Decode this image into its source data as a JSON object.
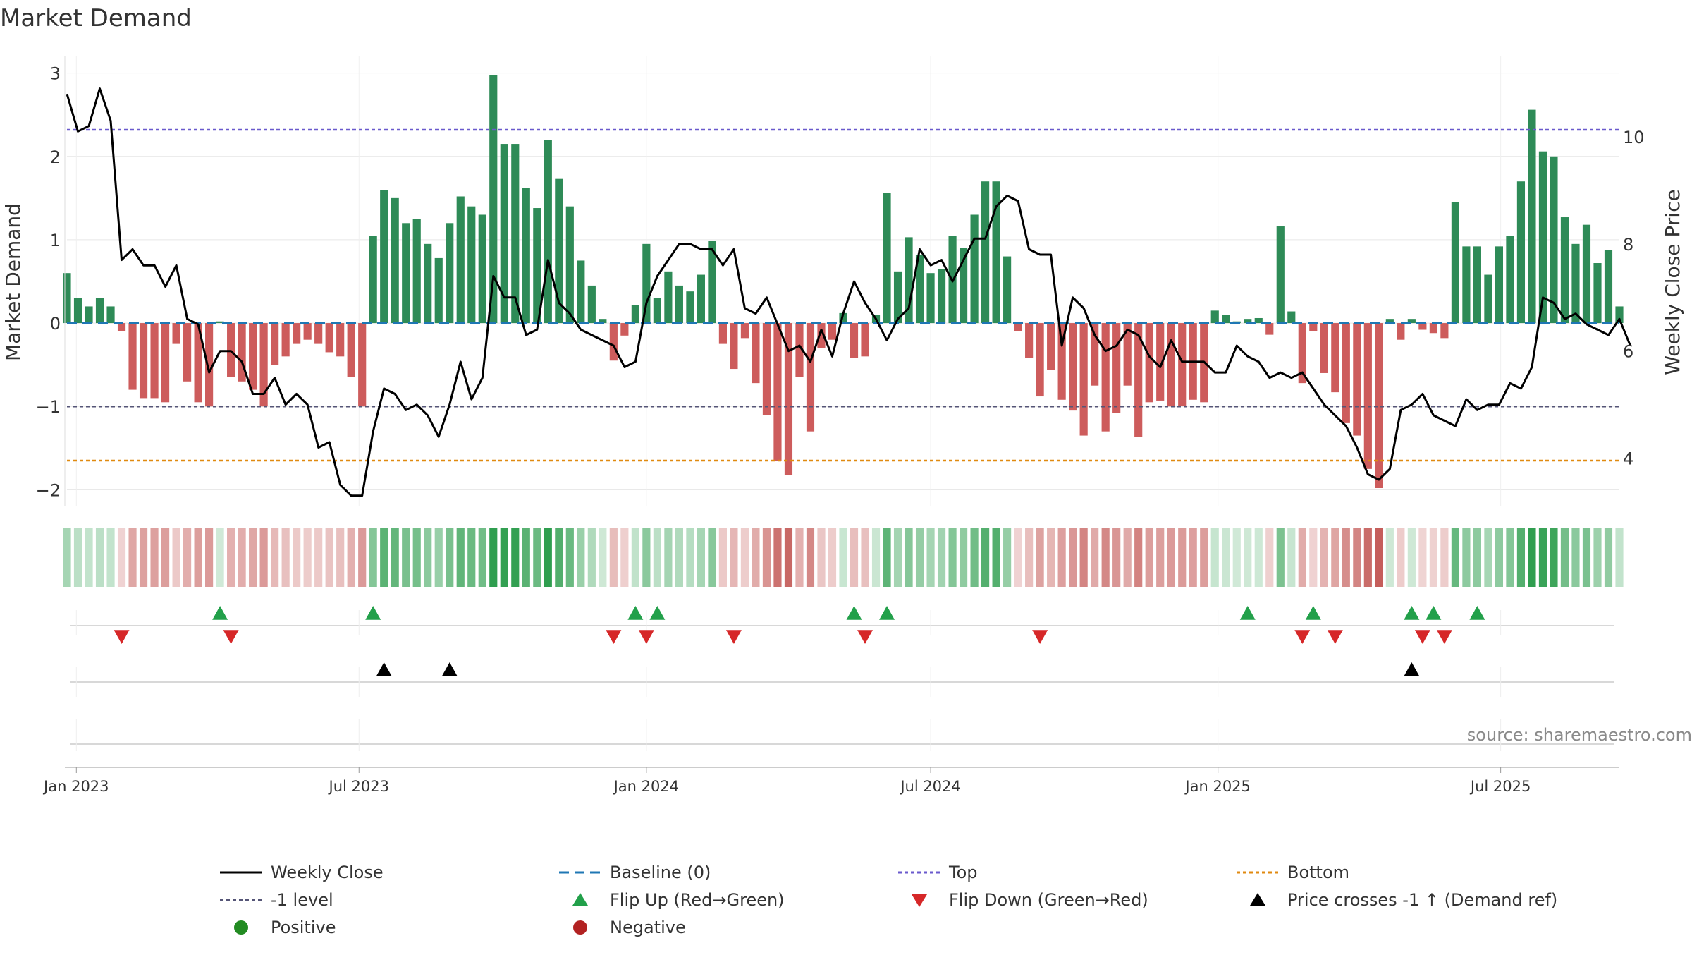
{
  "chart_data": {
    "type": "bar+line",
    "title": "Market Demand",
    "ylabel_left": "Market Demand",
    "ylabel_right": "Weekly Close Price",
    "ylim_left": [
      -2.2,
      3.2
    ],
    "ylim_right": [
      3.1,
      11.5
    ],
    "yticks_left": [
      -2,
      -1,
      0,
      1,
      2,
      3
    ],
    "yticks_left_labels": [
      "−2",
      "−1",
      "0",
      "1",
      "2",
      "3"
    ],
    "yticks_right": [
      4,
      6,
      8,
      10
    ],
    "yticks_right_labels": [
      "4",
      "6",
      "8",
      "10"
    ],
    "x_start": "2022-12-26",
    "x_end": "2025-09-15",
    "week_start": "2022-12-26",
    "x_ticks": [
      {
        "date": "2023-01-01",
        "label": "Jan 2023"
      },
      {
        "date": "2023-07-01",
        "label": "Jul 2023"
      },
      {
        "date": "2024-01-01",
        "label": "Jan 2024"
      },
      {
        "date": "2024-07-01",
        "label": "Jul 2024"
      },
      {
        "date": "2025-01-01",
        "label": "Jan 2025"
      },
      {
        "date": "2025-07-01",
        "label": "Jul 2025"
      }
    ],
    "levels": {
      "top": 2.32,
      "bottom": -1.65,
      "minus_one": -1,
      "baseline": 0
    },
    "demand": [
      0.6,
      0.3,
      0.2,
      0.3,
      0.2,
      -0.1,
      -0.8,
      -0.9,
      -0.9,
      -0.95,
      -0.25,
      -0.7,
      -0.95,
      -1.0,
      0.02,
      -0.65,
      -0.7,
      -0.8,
      -1.0,
      -0.5,
      -0.4,
      -0.25,
      -0.2,
      -0.25,
      -0.35,
      -0.4,
      -0.65,
      -1.0,
      1.05,
      1.6,
      1.5,
      1.2,
      1.25,
      0.95,
      0.78,
      1.2,
      1.52,
      1.4,
      1.3,
      2.98,
      2.15,
      2.15,
      1.62,
      1.38,
      2.2,
      1.73,
      1.4,
      0.75,
      0.45,
      0.05,
      -0.45,
      -0.15,
      0.22,
      0.95,
      0.3,
      0.62,
      0.45,
      0.38,
      0.58,
      0.99,
      -0.25,
      -0.55,
      -0.18,
      -0.72,
      -1.1,
      -1.65,
      -1.82,
      -0.65,
      -1.3,
      -0.3,
      -0.2,
      0.12,
      -0.42,
      -0.4,
      0.1,
      1.56,
      0.62,
      1.03,
      0.82,
      0.6,
      0.65,
      1.05,
      0.9,
      1.3,
      1.7,
      1.7,
      0.8,
      -0.1,
      -0.42,
      -0.88,
      -0.56,
      -0.92,
      -1.05,
      -1.35,
      -0.75,
      -1.3,
      -1.08,
      -0.75,
      -1.37,
      -0.95,
      -0.93,
      -1.0,
      -0.99,
      -0.92,
      -0.95,
      0.15,
      0.1,
      0.02,
      0.05,
      0.06,
      -0.14,
      1.16,
      0.14,
      -0.72,
      -0.1,
      -0.6,
      -0.83,
      -1.2,
      -1.35,
      -1.75,
      -1.98,
      0.05,
      -0.2,
      0.05,
      -0.08,
      -0.12,
      -0.18,
      1.45,
      0.92,
      0.92,
      0.58,
      0.92,
      1.05,
      1.7,
      2.56,
      2.06,
      2.0,
      1.27,
      0.95,
      1.18,
      0.72,
      0.88,
      0.2
    ],
    "close": [
      10.8,
      10.1,
      10.2,
      10.9,
      10.3,
      7.7,
      7.9,
      7.6,
      7.6,
      7.2,
      7.6,
      6.6,
      6.5,
      5.6,
      6.0,
      6.0,
      5.8,
      5.2,
      5.2,
      5.5,
      5.0,
      5.2,
      5.0,
      4.2,
      4.3,
      3.5,
      3.3,
      3.3,
      4.5,
      5.3,
      5.2,
      4.9,
      5.0,
      4.8,
      4.4,
      5.0,
      5.8,
      5.1,
      5.5,
      7.4,
      7.0,
      7.0,
      6.3,
      6.4,
      7.7,
      6.9,
      6.7,
      6.4,
      6.3,
      6.2,
      6.1,
      5.7,
      5.8,
      6.9,
      7.4,
      7.7,
      8.0,
      8.0,
      7.9,
      7.9,
      7.6,
      7.9,
      6.8,
      6.7,
      7.0,
      6.5,
      6.0,
      6.1,
      5.8,
      6.4,
      5.9,
      6.7,
      7.3,
      6.9,
      6.6,
      6.2,
      6.6,
      6.8,
      7.9,
      7.6,
      7.7,
      7.3,
      7.7,
      8.1,
      8.1,
      8.7,
      8.9,
      8.8,
      7.9,
      7.8,
      7.8,
      6.1,
      7.0,
      6.8,
      6.3,
      6.0,
      6.1,
      6.4,
      6.3,
      5.9,
      5.7,
      6.2,
      5.8,
      5.8,
      5.8,
      5.6,
      5.6,
      6.1,
      5.9,
      5.8,
      5.5,
      5.6,
      5.5,
      5.6,
      5.3,
      5.0,
      4.8,
      4.6,
      4.2,
      3.7,
      3.6,
      3.8,
      4.9,
      5.0,
      5.2,
      4.8,
      4.7,
      4.6,
      5.1,
      4.9,
      5.0,
      5.0,
      5.4,
      5.3,
      5.7,
      7.0,
      6.9,
      6.6,
      6.7,
      6.5,
      6.4,
      6.3,
      6.6,
      6.1
    ],
    "flip_up_weeks": [
      14,
      28,
      52,
      54,
      72,
      75,
      108,
      114,
      123,
      125,
      129
    ],
    "flip_down_weeks": [
      5,
      15,
      50,
      53,
      61,
      73,
      89,
      113,
      116,
      124,
      126
    ],
    "price_cross_weeks": [
      29,
      35,
      123
    ],
    "legend": [
      {
        "label": "Weekly Close",
        "marker": "line"
      },
      {
        "label": "Baseline (0)",
        "marker": "dash"
      },
      {
        "label": "Top",
        "marker": "dotted"
      },
      {
        "label": "Bottom",
        "marker": "dotted"
      },
      {
        "label": "-1 level",
        "marker": "dotted"
      },
      {
        "label": "Flip Up (Red→Green)",
        "marker": "triangle-up"
      },
      {
        "label": "Flip Down (Green→Red)",
        "marker": "triangle-down"
      },
      {
        "label": "Price crosses -1 ↑ (Demand ref)",
        "marker": "triangle-up"
      },
      {
        "label": "Positive",
        "marker": "circle"
      },
      {
        "label": "Negative",
        "marker": "circle"
      }
    ],
    "legend_placement": "bottom",
    "grid": true
  },
  "source": "source: sharemaestro.com",
  "colors": {
    "positive": "#2e8b57",
    "negative": "#cd5c5c",
    "line": "#000000",
    "baseline": "#1f77b4",
    "top": "#6a5acd",
    "minus_one": "#555577",
    "bottom": "#e08a10",
    "flip_up": "#22a04a",
    "flip_down": "#d62728",
    "cross": "#000000",
    "positive_dot": "#228b22",
    "negative_dot": "#b22222",
    "grid": "#e6e6e6",
    "text": "#333333"
  }
}
